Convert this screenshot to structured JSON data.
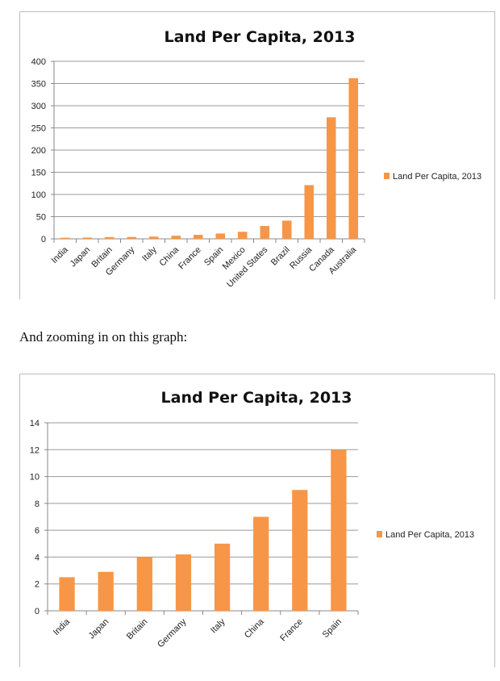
{
  "caption": "And zooming in on this graph:",
  "chart_data": [
    {
      "type": "bar",
      "title": "Land Per Capita, 2013",
      "categories": [
        "India",
        "Japan",
        "Britain",
        "Germany",
        "Italy",
        "China",
        "France",
        "Spain",
        "Mexico",
        "United States",
        "Brazil",
        "Russia",
        "Canada",
        "Australia"
      ],
      "series": [
        {
          "name": "Land Per Capita, 2013",
          "values": [
            2.5,
            2.9,
            4,
            4.2,
            5,
            7,
            9,
            12,
            16,
            29,
            41,
            121,
            274,
            362
          ],
          "color": "#f79646"
        }
      ],
      "yticks": [
        0,
        50,
        100,
        150,
        200,
        250,
        300,
        350,
        400
      ],
      "ylim": [
        0,
        400
      ],
      "grid": true,
      "legend": "right"
    },
    {
      "type": "bar",
      "title": "Land Per Capita, 2013",
      "categories": [
        "India",
        "Japan",
        "Britain",
        "Germany",
        "Italy",
        "China",
        "France",
        "Spain"
      ],
      "series": [
        {
          "name": "Land Per Capita, 2013",
          "values": [
            2.5,
            2.9,
            4,
            4.2,
            5,
            7,
            9,
            12
          ],
          "color": "#f79646"
        }
      ],
      "yticks": [
        0,
        2,
        4,
        6,
        8,
        10,
        12,
        14
      ],
      "ylim": [
        0,
        14
      ],
      "grid": true,
      "legend": "right"
    }
  ]
}
